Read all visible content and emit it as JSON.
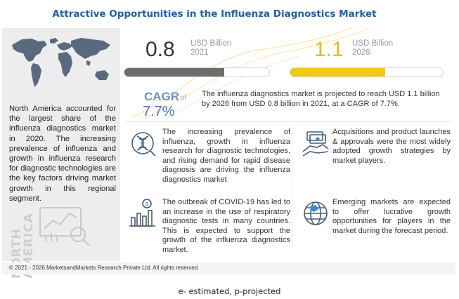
{
  "title": "Attractive Opportunities in the Influenza Diagnostics Market",
  "left_panel": {
    "text": "North America accounted for the largest share of the influenza diagnostics market in 2020. The increasing prevalence of influenza and growth in influenza research for diagnostic technologies are the key factors driving market growth in this regional segment.",
    "region_line1": "NORTH",
    "region_line2": "AMERICA",
    "icons": [
      "world-map-icon",
      "analytics-chart-icon"
    ]
  },
  "market": {
    "value_2021": "0.8",
    "unit_2021": "USD Billion",
    "year_2021": "2021",
    "value_2026": "1.1",
    "unit_2026": "USD Billion",
    "year_2026": "2026",
    "bar_2021_fraction": 0.69,
    "bar_2026_fraction": 0.62,
    "cagr_label": "CAGR",
    "cagr_of": "of",
    "cagr_value": "7.7%",
    "summary": "The influenza diagnostics market is projected to reach USD 1.1 billion by 2026 from USD 0.8 billion in 2021, at a CAGR of 7.7%."
  },
  "highlights": [
    {
      "icon": "research-dna-icon",
      "text": "The increasing prevalence of influenza, growth in influenza research for diagnostic technologies, and rising demand for rapid disease diagnosis are driving the influenza diagnostics market"
    },
    {
      "icon": "growth-bars-dollar-icon",
      "text": "The outbreak of COVID-19 has led to an increase in the use of respiratory diagnostic tests in many countries. This is expected to support the growth of the influenza diagnostics market."
    },
    {
      "icon": "handshake-money-icon",
      "text": "Acquisitions and product launches & approvals were the most widely adopted growth strategies by market players."
    },
    {
      "icon": "globe-icon",
      "text": "Emerging markets are expected to offer lucrative growth opportunities for players in the market during the forecast period."
    }
  ],
  "colors": {
    "title": "#1f5fa8",
    "accent_gold": "#f2c81a",
    "bar_gray": "#6d6d6d",
    "cagr_blue": "#3e7bc8"
  },
  "footer": {
    "copyright": "© 2021 - 2026 MarketsandMarkets Research Private Ltd. All rights reserved",
    "note": "e- estimated, p-projected"
  }
}
